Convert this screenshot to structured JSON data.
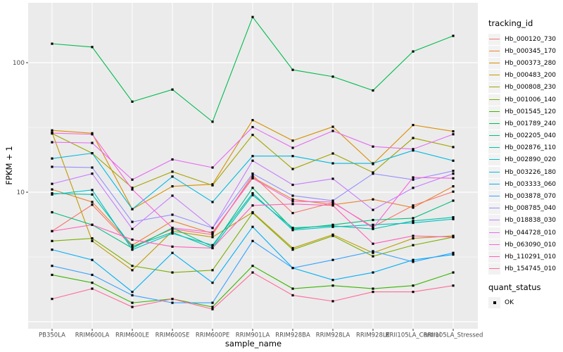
{
  "figure": {
    "y_axis": {
      "title": "FPKM + 1",
      "tick_labels": [
        "100",
        "10"
      ],
      "tick_values": [
        100,
        10
      ]
    },
    "x_axis": {
      "title": "sample_name"
    },
    "legend": {
      "color_title": "tracking_id",
      "shape_title": "quant_status",
      "shape_items": [
        {
          "label": "OK"
        }
      ]
    },
    "colors": {
      "panel_background": "#EBEBEB",
      "grid_major": "#FFFFFF",
      "grid_minor": "#F5F5F5",
      "tick_text": "#4D4D4D",
      "axis_tick": "#333333",
      "point": "#000000"
    }
  },
  "chart_data": {
    "type": "line",
    "title": "",
    "xlabel": "sample_name",
    "ylabel": "FPKM + 1",
    "log_y": true,
    "ylim": [
      1,
      290
    ],
    "y_major_breaks": [
      1,
      10,
      100
    ],
    "y_minor_breaks": [
      3.162,
      31.62
    ],
    "grid": true,
    "legend_position": "right",
    "point_shape": "filled-square",
    "quant_status_value": "OK",
    "categories": [
      "PB350LA",
      "RRIM600LA",
      "RRIM600LE",
      "RRIM600SE",
      "RRIM600PE",
      "RRIM901LA",
      "RRIM928BA",
      "RRIM928LA",
      "RRIM928LE",
      "RRII105LA_Control",
      "RRII105LA_Stressed"
    ],
    "series": [
      {
        "name": "Hb_000120_730",
        "color": "#F8766D",
        "values": [
          5.0,
          8.0,
          3.8,
          5.2,
          4.7,
          13.5,
          6.9,
          8.3,
          5.4,
          7.9,
          10.1
        ]
      },
      {
        "name": "Hb_000345_170",
        "color": "#EA8331",
        "values": [
          10.5,
          8.4,
          3.9,
          6.0,
          4.8,
          13.0,
          8.8,
          8.0,
          8.8,
          7.6,
          11.1
        ]
      },
      {
        "name": "Hb_000373_280",
        "color": "#D89000",
        "values": [
          30.0,
          28.5,
          7.4,
          11.1,
          11.5,
          36.0,
          25.0,
          32.0,
          16.5,
          33.0,
          29.5
        ]
      },
      {
        "name": "Hb_000483_200",
        "color": "#C09B00",
        "values": [
          28.8,
          4.2,
          2.5,
          5.0,
          4.5,
          7.0,
          3.7,
          4.7,
          3.4,
          4.4,
          4.6
        ]
      },
      {
        "name": "Hb_000808_230",
        "color": "#A3A500",
        "values": [
          28.4,
          20.0,
          10.8,
          14.4,
          11.3,
          27.7,
          15.1,
          19.9,
          14.2,
          26.2,
          22.3
        ]
      },
      {
        "name": "Hb_001006_140",
        "color": "#7CAE00",
        "values": [
          4.2,
          4.4,
          2.7,
          2.4,
          2.5,
          6.9,
          3.6,
          4.6,
          3.2,
          3.9,
          4.5
        ]
      },
      {
        "name": "Hb_001545_120",
        "color": "#39B600",
        "values": [
          2.3,
          2.0,
          1.4,
          1.5,
          1.3,
          2.7,
          1.8,
          1.9,
          1.8,
          1.9,
          2.4
        ]
      },
      {
        "name": "Hb_001789_240",
        "color": "#00BB4E",
        "values": [
          140,
          132,
          50,
          62,
          35,
          225,
          88,
          78,
          61,
          122,
          161
        ]
      },
      {
        "name": "Hb_002205_040",
        "color": "#00BF7D",
        "values": [
          7.0,
          5.6,
          3.7,
          5.3,
          3.8,
          10.8,
          5.2,
          5.6,
          6.1,
          6.3,
          8.6
        ]
      },
      {
        "name": "Hb_002876_110",
        "color": "#00C1A3",
        "values": [
          9.8,
          9.6,
          3.8,
          4.9,
          3.7,
          9.5,
          5.3,
          5.5,
          5.2,
          6.0,
          6.4
        ]
      },
      {
        "name": "Hb_002890_020",
        "color": "#00BFC4",
        "values": [
          9.6,
          10.4,
          3.6,
          4.8,
          3.9,
          9.8,
          5.1,
          5.4,
          5.6,
          5.8,
          6.2
        ]
      },
      {
        "name": "Hb_003226_180",
        "color": "#00BAE0",
        "values": [
          18.2,
          20.0,
          7.4,
          13.2,
          8.4,
          19.0,
          19.0,
          16.7,
          16.7,
          21.0,
          17.5
        ]
      },
      {
        "name": "Hb_003333_060",
        "color": "#00B0F6",
        "values": [
          3.6,
          3.0,
          1.7,
          3.4,
          2.0,
          5.4,
          2.6,
          2.1,
          2.4,
          3.0,
          3.3
        ]
      },
      {
        "name": "Hb_003878_070",
        "color": "#35A2FF",
        "values": [
          2.7,
          2.3,
          1.6,
          1.4,
          1.4,
          4.2,
          2.6,
          3.0,
          3.5,
          2.9,
          3.4
        ]
      },
      {
        "name": "Hb_008785_040",
        "color": "#9590FF",
        "values": [
          15.7,
          15.5,
          5.9,
          6.7,
          5.3,
          13.9,
          9.4,
          8.6,
          13.9,
          12.5,
          14.6
        ]
      },
      {
        "name": "Hb_018838_030",
        "color": "#C77CFF",
        "values": [
          11.6,
          13.9,
          5.2,
          9.4,
          5.3,
          17.5,
          11.4,
          12.7,
          7.3,
          10.8,
          13.9
        ]
      },
      {
        "name": "Hb_044728_010",
        "color": "#E76BF3",
        "values": [
          24.3,
          24.0,
          12.5,
          17.9,
          15.5,
          31.8,
          22.0,
          29.7,
          22.5,
          21.5,
          28.0
        ]
      },
      {
        "name": "Hb_063090_010",
        "color": "#FA62DB",
        "values": [
          28.6,
          28.0,
          10.5,
          5.3,
          4.9,
          12.8,
          8.5,
          8.4,
          5.3,
          13.0,
          12.8
        ]
      },
      {
        "name": "Hb_110291_010",
        "color": "#FF62BC",
        "values": [
          5.0,
          5.6,
          4.3,
          3.8,
          3.7,
          7.9,
          8.1,
          7.9,
          4.0,
          4.6,
          4.5
        ]
      },
      {
        "name": "Hb_154745_010",
        "color": "#FF6A98",
        "values": [
          1.5,
          1.8,
          1.3,
          1.5,
          1.25,
          2.4,
          1.6,
          1.44,
          1.7,
          1.7,
          1.9
        ]
      }
    ]
  }
}
